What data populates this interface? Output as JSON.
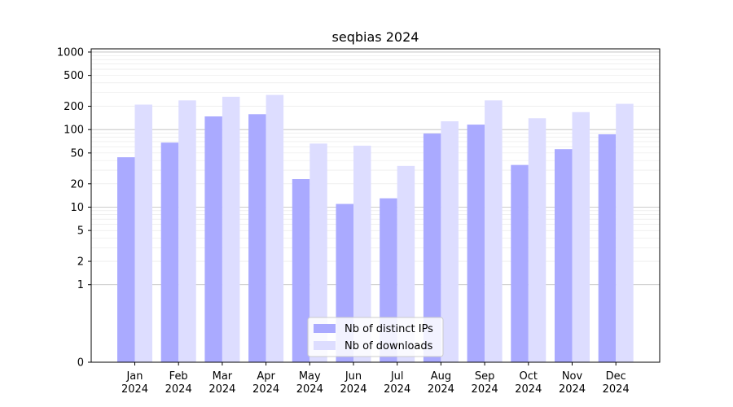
{
  "chart_data": {
    "type": "bar",
    "title": "seqbias 2024",
    "xlabel": "",
    "ylabel": "",
    "y_scale": "symlog",
    "ylim": [
      0,
      1100
    ],
    "y_ticks": [
      0,
      1,
      2,
      5,
      10,
      20,
      50,
      100,
      200,
      500,
      1000
    ],
    "grid": "horizontal",
    "legend_position": "bottom-center",
    "categories": [
      "Jan\n2024",
      "Feb\n2024",
      "Mar\n2024",
      "Apr\n2024",
      "May\n2024",
      "Jun\n2024",
      "Jul\n2024",
      "Aug\n2024",
      "Sep\n2024",
      "Oct\n2024",
      "Nov\n2024",
      "Dec\n2024"
    ],
    "series": [
      {
        "name": "Nb of distinct IPs",
        "color": "#aaaaff",
        "values": [
          44,
          68,
          148,
          158,
          23,
          11,
          13,
          89,
          116,
          35,
          56,
          87
        ]
      },
      {
        "name": "Nb of downloads",
        "color": "#ddddff",
        "values": [
          210,
          238,
          265,
          280,
          66,
          62,
          34,
          128,
          238,
          140,
          168,
          215
        ]
      }
    ]
  }
}
